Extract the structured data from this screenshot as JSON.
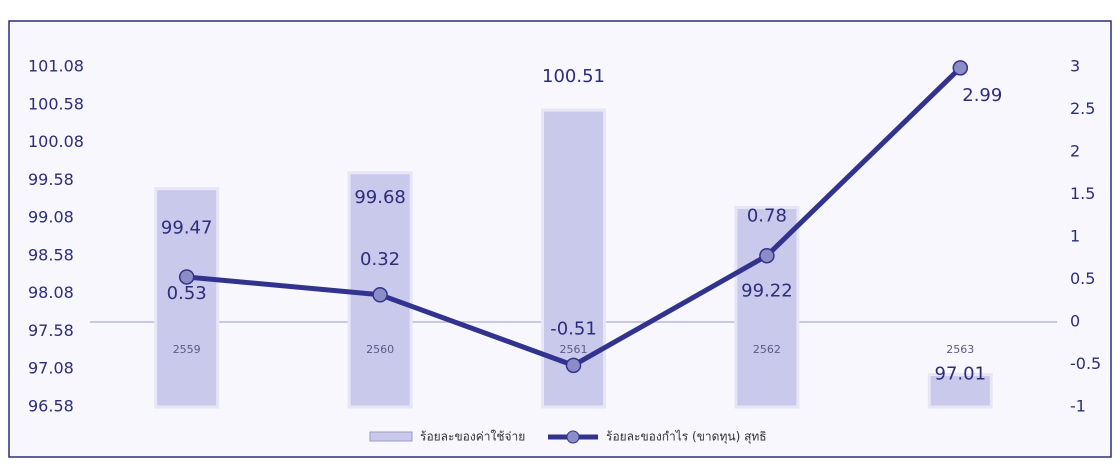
{
  "chart_data": {
    "type": "bar-line",
    "categories": [
      "2559",
      "2560",
      "2561",
      "2562",
      "2563"
    ],
    "series": [
      {
        "name": "ร้อยละของค่าใช้จ่าย",
        "type": "bar",
        "color": "#c9c9ec",
        "values": [
          99.47,
          99.68,
          100.51,
          99.22,
          97.01
        ]
      },
      {
        "name": "ร้อยละของกำไร (ขาดทุน) สุทธิ",
        "type": "line",
        "axis": "y2",
        "color": "#32338e",
        "values": [
          0.53,
          0.32,
          -0.51,
          0.78,
          2.99
        ]
      }
    ],
    "ylim": [
      96.58,
      101.08
    ],
    "yticks": [
      96.58,
      97.08,
      97.58,
      98.08,
      98.58,
      99.08,
      99.58,
      100.08,
      100.58,
      101.08
    ],
    "y2lim": [
      -1,
      3
    ],
    "y2ticks": [
      -1,
      -0.5,
      0,
      0.5,
      1,
      1.5,
      2,
      2.5,
      3
    ],
    "legend": "bottom"
  }
}
